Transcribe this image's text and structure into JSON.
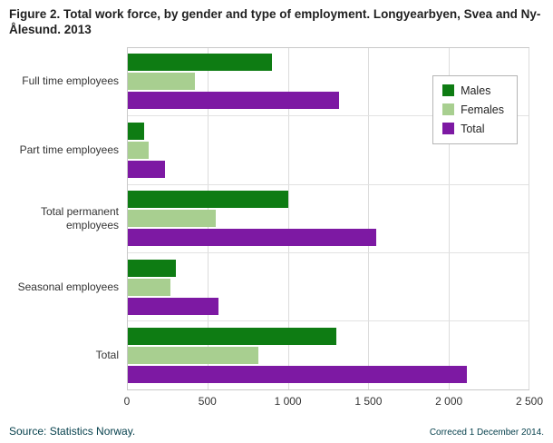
{
  "title": "Figure 2. Total work force, by gender and type of employment. Longyearbyen, Svea and Ny-Ålesund. 2013",
  "footer": {
    "source": "Source: Statistics Norway.",
    "correction": "Correced 1 December 2014."
  },
  "chart_data": {
    "type": "bar",
    "orientation": "horizontal",
    "title": "Figure 2. Total work force, by gender and type of employment. Longyearbyen, Svea and Ny-Ålesund. 2013",
    "categories": [
      "Full time employees",
      "Part time employees",
      "Total permanent employees",
      "Seasonal employees",
      "Total"
    ],
    "series": [
      {
        "name": "Males",
        "color": "#0e7c13",
        "values": [
          900,
          100,
          1000,
          300,
          1300
        ]
      },
      {
        "name": "Females",
        "color": "#a8cf90",
        "values": [
          420,
          130,
          550,
          265,
          815
        ]
      },
      {
        "name": "Total",
        "color": "#7d19a3",
        "values": [
          1320,
          230,
          1550,
          565,
          2115
        ]
      }
    ],
    "xlim": [
      0,
      2500
    ],
    "xticks": [
      0,
      500,
      1000,
      1500,
      2000,
      2500
    ],
    "xtick_labels": [
      "0",
      "500",
      "1 000",
      "1 500",
      "2 000",
      "2 500"
    ],
    "grid": true,
    "legend_position": "top-right"
  }
}
